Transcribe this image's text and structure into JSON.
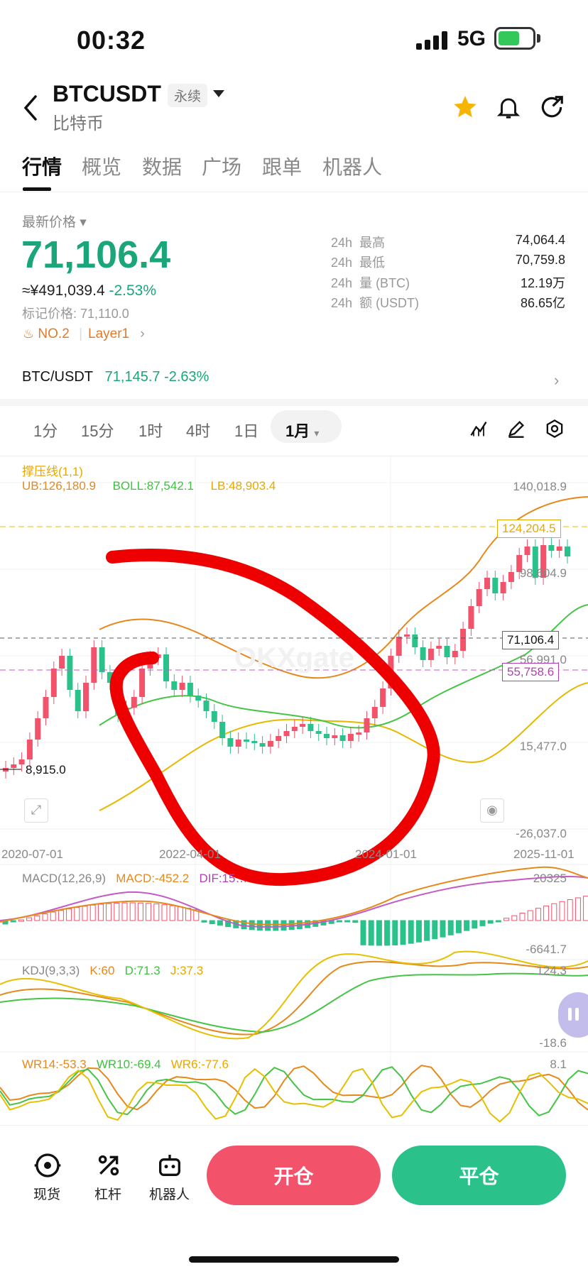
{
  "status_bar": {
    "time": "00:32",
    "network": "5G"
  },
  "header": {
    "symbol": "BTCUSDT",
    "badge": "永续",
    "subtitle": "比特币"
  },
  "tabs": [
    "行情",
    "概览",
    "数据",
    "广场",
    "跟单",
    "机器人"
  ],
  "price": {
    "label": "最新价格",
    "last": "71,106.4",
    "cny": "≈¥491,039.4",
    "change_pct": "-2.53%",
    "mark": "标记价格: 71,110.0",
    "rank": "NO.2",
    "category": "Layer1"
  },
  "stats": [
    {
      "period": "24h",
      "name": "最高",
      "value": "74,064.4"
    },
    {
      "period": "24h",
      "name": "最低",
      "value": "70,759.8"
    },
    {
      "period": "24h",
      "name": "量 (BTC)",
      "value": "12.19万"
    },
    {
      "period": "24h",
      "name": "额 (USDT)",
      "value": "86.65亿"
    }
  ],
  "spot_pair": {
    "name": "BTC/USDT",
    "price": "71,145.7",
    "change": "-2.63%"
  },
  "intervals": [
    "1分",
    "15分",
    "1时",
    "4时",
    "1日"
  ],
  "active_interval": "1月",
  "chart": {
    "indicator_title": "撑压线(1,1)",
    "ub": "UB:126,180.9",
    "boll": "BOLL:87,542.1",
    "lb": "LB:48,903.4",
    "y_axis": [
      "140,018.9",
      "98,604.9",
      "56,991.0",
      "15,477.0",
      "-26,037.0"
    ],
    "resistance_tag": "124,204.5",
    "last_tag": "71,106.4",
    "support_tag": "55,758.6",
    "low_tag": "8,915.0",
    "x_axis": [
      "2020-07-01",
      "2022-04-01",
      "2024-01-01",
      "2025-11-01"
    ],
    "watermark": "OKXgate"
  },
  "macd": {
    "title": "MACD(12,26,9)",
    "macd": "MACD:-452.2",
    "dif": "DIF:15…",
    "top": "20325",
    "bottom": "-6641.7"
  },
  "kdj": {
    "title": "KDJ(9,3,3)",
    "k": "K:60",
    "d": "D:71.3",
    "j": "J:37.3",
    "top": "124.3",
    "bottom": "-18.6"
  },
  "wr": {
    "wr14": "WR14:-53.3",
    "wr10": "WR10:-69.4",
    "wr6": "WR6:-77.6",
    "top": "8.1"
  },
  "bottom_bar": {
    "spot": "现货",
    "leverage": "杠杆",
    "robot": "机器人",
    "open": "开仓",
    "close": "平仓"
  }
}
